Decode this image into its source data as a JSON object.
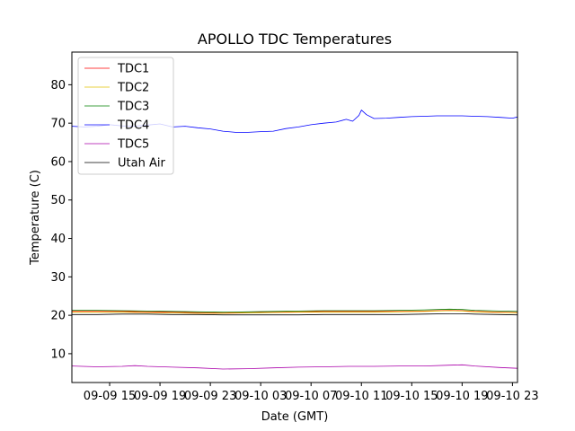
{
  "chart_data": {
    "type": "line",
    "title": "APOLLO TDC Temperatures",
    "xlabel": "Date (GMT)",
    "ylabel": "Temperature (C)",
    "xlim": [
      0,
      35.4
    ],
    "ylim": [
      2.5,
      88.5
    ],
    "legend_position": "top-left",
    "grid": false,
    "x_unit": "hours since 09-09 12:00 GMT",
    "yticks": [
      10,
      20,
      30,
      40,
      50,
      60,
      70,
      80
    ],
    "xticks": [
      {
        "x": 3,
        "label": "09-09 15"
      },
      {
        "x": 7,
        "label": "09-09 19"
      },
      {
        "x": 11,
        "label": "09-09 23"
      },
      {
        "x": 15,
        "label": "09-10 03"
      },
      {
        "x": 19,
        "label": "09-10 07"
      },
      {
        "x": 23,
        "label": "09-10 11"
      },
      {
        "x": 27,
        "label": "09-10 15"
      },
      {
        "x": 31,
        "label": "09-10 19"
      },
      {
        "x": 35,
        "label": "09-10 23"
      }
    ],
    "series": [
      {
        "name": "TDC1",
        "color": "#ff0000",
        "x": [
          0,
          2,
          4,
          6,
          8,
          10,
          12,
          14,
          16,
          18,
          20,
          22,
          24,
          26,
          28,
          30,
          31,
          32,
          34,
          35.4
        ],
        "y": [
          21.0,
          21.0,
          21.0,
          20.9,
          20.8,
          20.7,
          20.6,
          20.7,
          20.8,
          20.9,
          21.0,
          21.0,
          21.0,
          21.0,
          21.1,
          21.3,
          21.2,
          21.0,
          20.8,
          20.7
        ]
      },
      {
        "name": "TDC2",
        "color": "#e0c000",
        "x": [
          0,
          2,
          4,
          6,
          8,
          10,
          12,
          14,
          16,
          18,
          20,
          22,
          24,
          26,
          28,
          30,
          31,
          32,
          34,
          35.4
        ],
        "y": [
          20.8,
          20.8,
          20.8,
          20.7,
          20.6,
          20.5,
          20.5,
          20.6,
          20.7,
          20.8,
          20.8,
          20.8,
          20.8,
          20.9,
          21.0,
          21.2,
          21.1,
          20.9,
          20.7,
          20.6
        ]
      },
      {
        "name": "TDC3",
        "color": "#008000",
        "x": [
          0,
          2,
          4,
          6,
          8,
          10,
          12,
          14,
          16,
          18,
          20,
          22,
          24,
          26,
          28,
          30,
          31,
          32,
          34,
          35.4
        ],
        "y": [
          21.3,
          21.3,
          21.2,
          21.1,
          21.0,
          20.9,
          20.8,
          20.9,
          21.0,
          21.1,
          21.2,
          21.2,
          21.2,
          21.3,
          21.4,
          21.6,
          21.5,
          21.3,
          21.1,
          21.0
        ]
      },
      {
        "name": "TDC4",
        "color": "#0000ff",
        "x": [
          0,
          1,
          2,
          3,
          4,
          5,
          6,
          7,
          8,
          9,
          10,
          11,
          12,
          13,
          14,
          15,
          16,
          17,
          18,
          19,
          20,
          21,
          21.8,
          22.3,
          22.8,
          23.0,
          23.4,
          24,
          25,
          26,
          27,
          28,
          29,
          30,
          31,
          32,
          33,
          34,
          35,
          35.4
        ],
        "y": [
          69.2,
          69.0,
          69.2,
          69.6,
          69.3,
          69.2,
          69.5,
          69.8,
          69.0,
          69.2,
          68.8,
          68.5,
          67.9,
          67.6,
          67.6,
          67.8,
          67.9,
          68.6,
          69.0,
          69.6,
          70.0,
          70.3,
          71.0,
          70.5,
          72.0,
          73.4,
          72.2,
          71.2,
          71.3,
          71.5,
          71.7,
          71.8,
          71.9,
          71.9,
          71.9,
          71.8,
          71.7,
          71.5,
          71.3,
          71.6
        ]
      },
      {
        "name": "TDC5",
        "color": "#aa00aa",
        "x": [
          0,
          2,
          4,
          5,
          6,
          8,
          10,
          12,
          14,
          16,
          18,
          20,
          22,
          24,
          26,
          28,
          30,
          31,
          32,
          34,
          35.4
        ],
        "y": [
          6.8,
          6.6,
          6.7,
          6.9,
          6.7,
          6.5,
          6.3,
          6.0,
          6.1,
          6.3,
          6.5,
          6.6,
          6.7,
          6.7,
          6.8,
          6.8,
          7.0,
          7.1,
          6.8,
          6.4,
          6.2
        ]
      },
      {
        "name": "Utah Air",
        "color": "#000000",
        "x": [
          0,
          2,
          4,
          6,
          8,
          10,
          12,
          14,
          16,
          18,
          20,
          22,
          24,
          26,
          28,
          30,
          31,
          32,
          34,
          35.4
        ],
        "y": [
          20.2,
          20.2,
          20.3,
          20.3,
          20.2,
          20.2,
          20.1,
          20.1,
          20.1,
          20.1,
          20.2,
          20.2,
          20.2,
          20.2,
          20.3,
          20.4,
          20.4,
          20.3,
          20.2,
          20.1
        ]
      }
    ]
  }
}
